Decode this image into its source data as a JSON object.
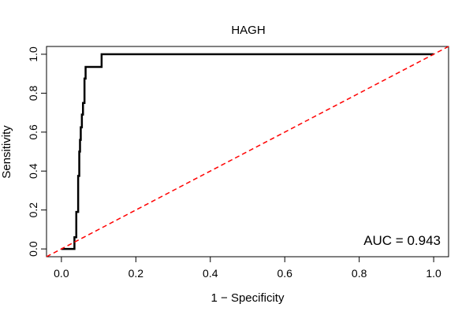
{
  "chart_data": {
    "type": "line",
    "title": "HAGH",
    "xlabel": "1 − Specificity",
    "ylabel": "Sensitivity",
    "xlim": [
      -0.04,
      1.04
    ],
    "ylim": [
      -0.04,
      1.04
    ],
    "x_ticks": [
      0.0,
      0.2,
      0.4,
      0.6,
      0.8,
      1.0
    ],
    "x_tick_labels": [
      "0.0",
      "0.2",
      "0.4",
      "0.6",
      "0.8",
      "1.0"
    ],
    "y_ticks": [
      0.0,
      0.2,
      0.4,
      0.6,
      0.8,
      1.0
    ],
    "y_tick_labels": [
      "0.0",
      "0.2",
      "0.4",
      "0.6",
      "0.8",
      "1.0"
    ],
    "grid": false,
    "annotation": "AUC = 0.943",
    "series": [
      {
        "style": "step",
        "color": "#000000",
        "x": [
          0.0,
          0.035,
          0.035,
          0.04,
          0.04,
          0.045,
          0.045,
          0.048,
          0.048,
          0.05,
          0.05,
          0.052,
          0.052,
          0.055,
          0.055,
          0.058,
          0.058,
          0.062,
          0.062,
          0.065,
          0.065,
          0.068,
          0.068,
          0.072,
          0.072,
          0.108,
          0.108,
          1.0
        ],
        "y": [
          0.0,
          0.0,
          0.06,
          0.06,
          0.19,
          0.19,
          0.375,
          0.375,
          0.5,
          0.5,
          0.56,
          0.56,
          0.625,
          0.625,
          0.69,
          0.69,
          0.75,
          0.75,
          0.875,
          0.875,
          0.935,
          0.935,
          0.935,
          0.935,
          0.935,
          0.935,
          1.0,
          1.0
        ]
      },
      {
        "style": "dashed",
        "color": "#ff0000",
        "x": [
          -0.04,
          1.04
        ],
        "y": [
          -0.04,
          1.04
        ]
      }
    ]
  }
}
